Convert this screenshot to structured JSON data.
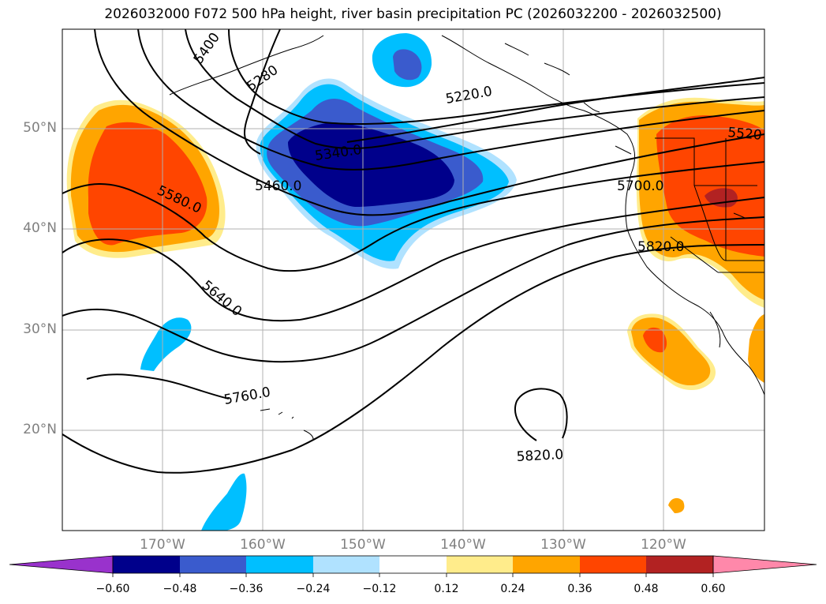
{
  "title": "2026032000 F072 500 hPa height, river basin precipitation PC (2026032200 - 2026032500)",
  "axes": {
    "lat_labels": [
      "50°N",
      "40°N",
      "30°N",
      "20°N"
    ],
    "lon_labels": [
      "170°W",
      "160°W",
      "150°W",
      "140°W",
      "130°W",
      "120°W"
    ]
  },
  "contour_labels": [
    {
      "id": "c5400",
      "text": "5400"
    },
    {
      "id": "c5280",
      "text": "5280"
    },
    {
      "id": "c5220",
      "text": "5220.0"
    },
    {
      "id": "c5340",
      "text": "5340.0"
    },
    {
      "id": "c5460",
      "text": "5460.0"
    },
    {
      "id": "c5580",
      "text": "5580.0"
    },
    {
      "id": "c5640",
      "text": "5640.0"
    },
    {
      "id": "c5700",
      "text": "5700.0"
    },
    {
      "id": "c5520",
      "text": "5520"
    },
    {
      "id": "c5820a",
      "text": "5820.0"
    },
    {
      "id": "c5760",
      "text": "5760.0"
    },
    {
      "id": "c5820b",
      "text": "5820.0"
    }
  ],
  "colorbar": {
    "colors": [
      "#9932cc",
      "#00008b",
      "#3a5bcd",
      "#00bfff",
      "#b0e2ff",
      "#ffffff",
      "#ffec8b",
      "#ffa500",
      "#ff4500",
      "#b22222",
      "#ff88aa"
    ],
    "tick_labels": [
      "−0.60",
      "−0.48",
      "−0.36",
      "−0.24",
      "−0.12",
      "0.12",
      "0.24",
      "0.36",
      "0.48",
      "0.60"
    ]
  }
}
